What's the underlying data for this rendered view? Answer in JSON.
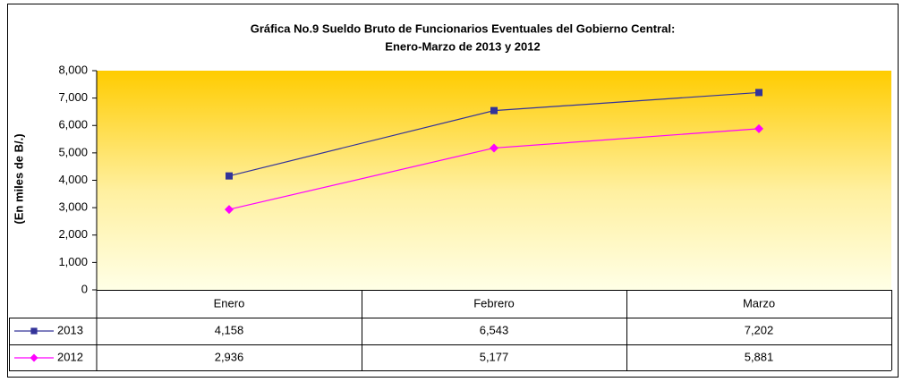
{
  "chart_data": {
    "type": "line",
    "title": [
      "Gráfica No.9 Sueldo Bruto de Funcionarios Eventuales del Gobierno Central:",
      "Enero-Marzo de 2013 y 2012"
    ],
    "y_label": "(En miles de B/.)",
    "categories": [
      "Enero",
      "Febrero",
      "Marzo"
    ],
    "series": [
      {
        "name": "2013",
        "color": "#333399",
        "marker": "square",
        "values": [
          4158,
          6543,
          7202
        ],
        "value_labels": [
          "4,158",
          "6,543",
          "7,202"
        ]
      },
      {
        "name": "2012",
        "color": "#ff00ff",
        "marker": "diamond",
        "values": [
          2936,
          5177,
          5881
        ],
        "value_labels": [
          "2,936",
          "5,177",
          "5,881"
        ]
      }
    ],
    "ylim": [
      0,
      8000
    ],
    "yticks": [
      0,
      {
        "value": 1000,
        "label": "1,000"
      },
      {
        "value": 2000,
        "label": "2,000"
      },
      {
        "value": 3000,
        "label": "3,000"
      },
      {
        "value": 4000,
        "label": "4,000"
      },
      {
        "value": 5000,
        "label": "5,000"
      },
      {
        "value": 6000,
        "label": "6,000"
      },
      {
        "value": 7000,
        "label": "7,000"
      },
      {
        "value": 8000,
        "label": "8,000"
      }
    ],
    "grid": false
  }
}
